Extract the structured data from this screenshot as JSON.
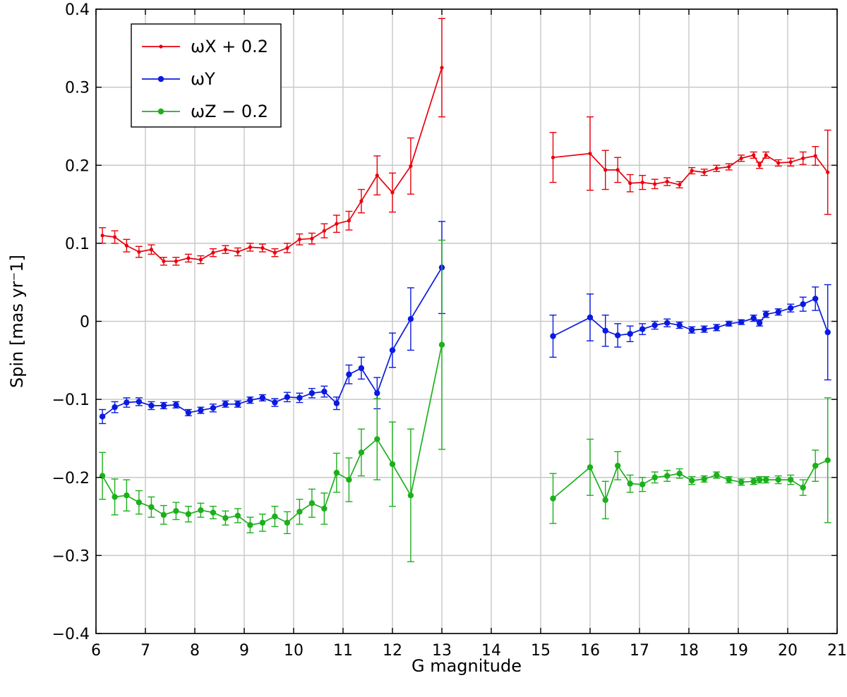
{
  "chart_data": {
    "type": "line",
    "xlabel": "G magnitude",
    "ylabel": "Spin [mas yr⁻1]",
    "xlim": [
      6,
      21
    ],
    "ylim": [
      -0.4,
      0.4
    ],
    "xticks": [
      6,
      7,
      8,
      9,
      10,
      11,
      12,
      13,
      14,
      15,
      16,
      17,
      18,
      19,
      20,
      21
    ],
    "xtick_labels": [
      "6",
      "7",
      "8",
      "9",
      "10",
      "11",
      "12",
      "13",
      "14",
      "15",
      "16",
      "17",
      "18",
      "19",
      "20",
      "21"
    ],
    "yticks": [
      -0.4,
      -0.3,
      -0.2,
      -0.1,
      0,
      0.1,
      0.2,
      0.3,
      0.4
    ],
    "ytick_labels": [
      "−0.4",
      "−0.3",
      "−0.2",
      "−0.1",
      "0",
      "0.1",
      "0.2",
      "0.3",
      "0.4"
    ],
    "grid": true,
    "legend_position": "top-left",
    "series": [
      {
        "name": "ωX + 0.2",
        "color": "#e8000b",
        "marker": "small-dot",
        "segments": [
          [
            [
              6.13,
              0.11,
              0.01
            ],
            [
              6.38,
              0.108,
              0.008
            ],
            [
              6.62,
              0.097,
              0.008
            ],
            [
              6.87,
              0.089,
              0.007
            ],
            [
              7.12,
              0.092,
              0.006
            ],
            [
              7.37,
              0.077,
              0.005
            ],
            [
              7.62,
              0.077,
              0.005
            ],
            [
              7.87,
              0.081,
              0.005
            ],
            [
              8.12,
              0.079,
              0.005
            ],
            [
              8.37,
              0.088,
              0.005
            ],
            [
              8.62,
              0.092,
              0.005
            ],
            [
              8.87,
              0.089,
              0.005
            ],
            [
              9.12,
              0.095,
              0.005
            ],
            [
              9.37,
              0.094,
              0.005
            ],
            [
              9.62,
              0.088,
              0.005
            ],
            [
              9.87,
              0.094,
              0.006
            ],
            [
              10.12,
              0.105,
              0.007
            ],
            [
              10.37,
              0.106,
              0.007
            ],
            [
              10.62,
              0.116,
              0.009
            ],
            [
              10.87,
              0.125,
              0.011
            ],
            [
              11.12,
              0.129,
              0.012
            ],
            [
              11.37,
              0.154,
              0.015
            ],
            [
              11.69,
              0.187,
              0.025
            ],
            [
              12.0,
              0.165,
              0.025
            ],
            [
              12.37,
              0.199,
              0.036
            ],
            [
              13.0,
              0.325,
              0.063
            ]
          ],
          [
            [
              15.25,
              0.21,
              0.032
            ],
            [
              16.0,
              0.215,
              0.047
            ],
            [
              16.31,
              0.194,
              0.025
            ],
            [
              16.56,
              0.194,
              0.016
            ],
            [
              16.81,
              0.177,
              0.011
            ],
            [
              17.06,
              0.178,
              0.009
            ],
            [
              17.31,
              0.176,
              0.006
            ],
            [
              17.56,
              0.179,
              0.005
            ],
            [
              17.81,
              0.175,
              0.004
            ],
            [
              18.06,
              0.193,
              0.004
            ],
            [
              18.31,
              0.191,
              0.004
            ],
            [
              18.56,
              0.196,
              0.004
            ],
            [
              18.81,
              0.198,
              0.004
            ],
            [
              19.06,
              0.209,
              0.004
            ],
            [
              19.31,
              0.213,
              0.004
            ],
            [
              19.43,
              0.2,
              0.004
            ],
            [
              19.56,
              0.213,
              0.004
            ],
            [
              19.81,
              0.203,
              0.004
            ],
            [
              20.06,
              0.204,
              0.005
            ],
            [
              20.31,
              0.209,
              0.008
            ],
            [
              20.56,
              0.212,
              0.012
            ],
            [
              20.81,
              0.191,
              0.054
            ]
          ]
        ]
      },
      {
        "name": "ωY",
        "color": "#0a1ae0",
        "marker": "dot",
        "segments": [
          [
            [
              6.13,
              -0.122,
              0.009
            ],
            [
              6.38,
              -0.11,
              0.007
            ],
            [
              6.62,
              -0.104,
              0.006
            ],
            [
              6.87,
              -0.103,
              0.005
            ],
            [
              7.12,
              -0.108,
              0.005
            ],
            [
              7.37,
              -0.108,
              0.004
            ],
            [
              7.62,
              -0.107,
              0.004
            ],
            [
              7.87,
              -0.117,
              0.004
            ],
            [
              8.12,
              -0.114,
              0.004
            ],
            [
              8.37,
              -0.111,
              0.005
            ],
            [
              8.62,
              -0.106,
              0.004
            ],
            [
              8.87,
              -0.106,
              0.004
            ],
            [
              9.12,
              -0.101,
              0.004
            ],
            [
              9.37,
              -0.098,
              0.004
            ],
            [
              9.62,
              -0.104,
              0.005
            ],
            [
              9.87,
              -0.097,
              0.006
            ],
            [
              10.12,
              -0.098,
              0.006
            ],
            [
              10.37,
              -0.092,
              0.006
            ],
            [
              10.62,
              -0.09,
              0.007
            ],
            [
              10.87,
              -0.105,
              0.008
            ],
            [
              11.12,
              -0.068,
              0.012
            ],
            [
              11.37,
              -0.06,
              0.014
            ],
            [
              11.69,
              -0.092,
              0.02
            ],
            [
              12.0,
              -0.037,
              0.022
            ],
            [
              12.37,
              0.003,
              0.04
            ],
            [
              13.0,
              0.069,
              0.059
            ]
          ],
          [
            [
              15.25,
              -0.019,
              0.027
            ],
            [
              16.0,
              0.005,
              0.03
            ],
            [
              16.31,
              -0.012,
              0.02
            ],
            [
              16.56,
              -0.018,
              0.015
            ],
            [
              16.81,
              -0.016,
              0.01
            ],
            [
              17.06,
              -0.01,
              0.007
            ],
            [
              17.31,
              -0.005,
              0.005
            ],
            [
              17.56,
              -0.002,
              0.005
            ],
            [
              17.81,
              -0.005,
              0.004
            ],
            [
              18.06,
              -0.011,
              0.004
            ],
            [
              18.31,
              -0.01,
              0.004
            ],
            [
              18.56,
              -0.008,
              0.004
            ],
            [
              18.81,
              -0.003,
              0.003
            ],
            [
              19.06,
              -0.001,
              0.003
            ],
            [
              19.31,
              0.004,
              0.004
            ],
            [
              19.43,
              -0.002,
              0.004
            ],
            [
              19.56,
              0.009,
              0.004
            ],
            [
              19.81,
              0.012,
              0.004
            ],
            [
              20.06,
              0.017,
              0.005
            ],
            [
              20.31,
              0.022,
              0.009
            ],
            [
              20.56,
              0.029,
              0.015
            ],
            [
              20.81,
              -0.014,
              0.061
            ]
          ]
        ]
      },
      {
        "name": "ωZ − 0.2",
        "color": "#1cb01c",
        "marker": "dot",
        "segments": [
          [
            [
              6.13,
              -0.198,
              0.03
            ],
            [
              6.38,
              -0.225,
              0.023
            ],
            [
              6.62,
              -0.223,
              0.02
            ],
            [
              6.87,
              -0.232,
              0.015
            ],
            [
              7.12,
              -0.238,
              0.013
            ],
            [
              7.37,
              -0.248,
              0.012
            ],
            [
              7.62,
              -0.243,
              0.011
            ],
            [
              7.87,
              -0.247,
              0.01
            ],
            [
              8.12,
              -0.242,
              0.009
            ],
            [
              8.37,
              -0.245,
              0.008
            ],
            [
              8.62,
              -0.252,
              0.009
            ],
            [
              8.87,
              -0.249,
              0.009
            ],
            [
              9.12,
              -0.261,
              0.01
            ],
            [
              9.37,
              -0.258,
              0.011
            ],
            [
              9.62,
              -0.25,
              0.013
            ],
            [
              9.87,
              -0.258,
              0.014
            ],
            [
              10.12,
              -0.244,
              0.016
            ],
            [
              10.37,
              -0.233,
              0.018
            ],
            [
              10.62,
              -0.24,
              0.02
            ],
            [
              10.87,
              -0.194,
              0.025
            ],
            [
              11.12,
              -0.203,
              0.028
            ],
            [
              11.37,
              -0.168,
              0.03
            ],
            [
              11.69,
              -0.151,
              0.052
            ],
            [
              12.0,
              -0.183,
              0.054
            ],
            [
              12.37,
              -0.223,
              0.085
            ],
            [
              13.0,
              -0.03,
              0.134
            ]
          ],
          [
            [
              15.25,
              -0.227,
              0.032
            ],
            [
              16.0,
              -0.187,
              0.036
            ],
            [
              16.31,
              -0.229,
              0.024
            ],
            [
              16.56,
              -0.185,
              0.018
            ],
            [
              16.81,
              -0.208,
              0.011
            ],
            [
              17.06,
              -0.209,
              0.009
            ],
            [
              17.31,
              -0.2,
              0.007
            ],
            [
              17.56,
              -0.198,
              0.007
            ],
            [
              17.81,
              -0.195,
              0.006
            ],
            [
              18.06,
              -0.204,
              0.005
            ],
            [
              18.31,
              -0.202,
              0.004
            ],
            [
              18.56,
              -0.197,
              0.004
            ],
            [
              18.81,
              -0.203,
              0.004
            ],
            [
              19.06,
              -0.206,
              0.004
            ],
            [
              19.31,
              -0.205,
              0.004
            ],
            [
              19.43,
              -0.203,
              0.004
            ],
            [
              19.56,
              -0.203,
              0.004
            ],
            [
              19.81,
              -0.203,
              0.005
            ],
            [
              20.06,
              -0.203,
              0.006
            ],
            [
              20.31,
              -0.213,
              0.01
            ],
            [
              20.56,
              -0.185,
              0.02
            ],
            [
              20.81,
              -0.178,
              0.08
            ]
          ]
        ]
      }
    ]
  }
}
